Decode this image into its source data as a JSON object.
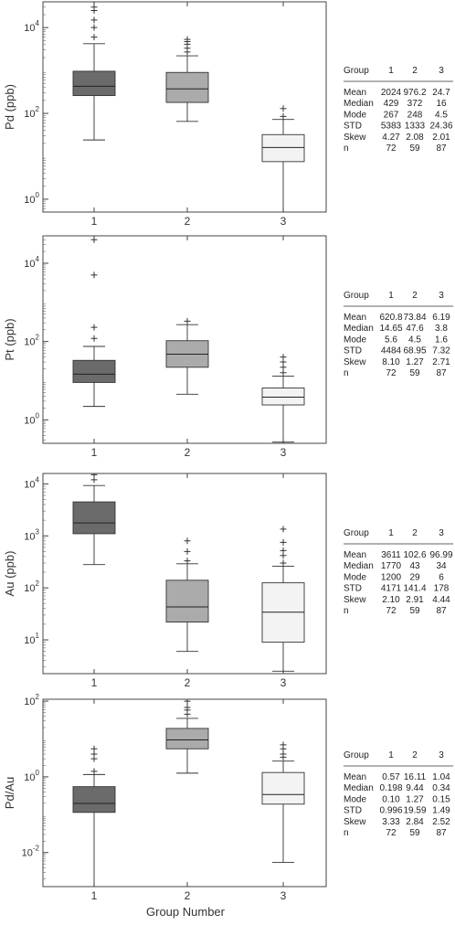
{
  "figure": {
    "xlabel": "Group Number",
    "categories": [
      "1",
      "2",
      "3"
    ],
    "stats_headers": [
      "Group",
      "1",
      "2",
      "3"
    ],
    "colors": {
      "group1": "#6b6b6b",
      "group2": "#ababab",
      "group3": "#f3f3f3",
      "stroke": "#333333"
    }
  },
  "chart_data": [
    {
      "type": "box",
      "ylabel": "Pd (ppb)",
      "yscale": "log",
      "ylim_exp": [
        -0.3,
        4.6
      ],
      "ticks": [
        {
          "exp": 0,
          "label": "10^0"
        },
        {
          "exp": 2,
          "label": "10^2"
        },
        {
          "exp": 4,
          "label": "10^4"
        }
      ],
      "categories": [
        "1",
        "2",
        "3"
      ],
      "boxes": [
        {
          "q1": 260,
          "median": 429,
          "q3": 960,
          "whisker_low": 24,
          "whisker_high": 4200,
          "outliers": [
            6000,
            10000,
            15000,
            25000,
            30000,
            42000
          ]
        },
        {
          "q1": 180,
          "median": 372,
          "q3": 900,
          "whisker_low": 65,
          "whisker_high": 2200,
          "outliers": [
            2700,
            3300,
            4100,
            4700,
            5300
          ]
        },
        {
          "q1": 7.5,
          "median": 16,
          "q3": 32,
          "whisker_low": 0.5,
          "whisker_high": 72,
          "outliers": [
            85,
            130
          ]
        }
      ],
      "stats": [
        {
          "label": "Mean",
          "values": [
            "2024",
            "976.2",
            "24.7"
          ]
        },
        {
          "label": "Median",
          "values": [
            "429",
            "372",
            "16"
          ]
        },
        {
          "label": "Mode",
          "values": [
            "267",
            "248",
            "4.5"
          ]
        },
        {
          "label": "STD",
          "values": [
            "5383",
            "1333",
            "24.36"
          ]
        },
        {
          "label": "Skew",
          "values": [
            "4.27",
            "2.08",
            "2.01"
          ]
        },
        {
          "label": "n",
          "values": [
            "72",
            "59",
            "87"
          ]
        }
      ]
    },
    {
      "type": "box",
      "ylabel": "Pt (ppb)",
      "yscale": "log",
      "ylim_exp": [
        -0.6,
        4.7
      ],
      "ticks": [
        {
          "exp": 0,
          "label": "10^0"
        },
        {
          "exp": 2,
          "label": "10^2"
        },
        {
          "exp": 4,
          "label": "10^4"
        }
      ],
      "categories": [
        "1",
        "2",
        "3"
      ],
      "boxes": [
        {
          "q1": 9,
          "median": 14.65,
          "q3": 33,
          "whisker_low": 2.2,
          "whisker_high": 75,
          "outliers": [
            120,
            230,
            5000,
            40000
          ]
        },
        {
          "q1": 22,
          "median": 47.6,
          "q3": 105,
          "whisker_low": 4.5,
          "whisker_high": 270,
          "outliers": [
            330
          ]
        },
        {
          "q1": 2.4,
          "median": 3.8,
          "q3": 6.5,
          "whisker_low": 0.27,
          "whisker_high": 13,
          "outliers": [
            16,
            22,
            30,
            40
          ]
        }
      ],
      "stats": [
        {
          "label": "Mean",
          "values": [
            "620.8",
            "73.84",
            "6.19"
          ]
        },
        {
          "label": "Median",
          "values": [
            "14.65",
            "47.6",
            "3.8"
          ]
        },
        {
          "label": "Mode",
          "values": [
            "5.6",
            "4.5",
            "1.6"
          ]
        },
        {
          "label": "STD",
          "values": [
            "4484",
            "68.95",
            "7.32"
          ]
        },
        {
          "label": "Skew",
          "values": [
            "8.10",
            "1.27",
            "2.71"
          ]
        },
        {
          "label": "n",
          "values": [
            "72",
            "59",
            "87"
          ]
        }
      ]
    },
    {
      "type": "box",
      "ylabel": "Au (ppb)",
      "yscale": "log",
      "ylim_exp": [
        0.35,
        4.2
      ],
      "ticks": [
        {
          "exp": 1,
          "label": "10^1"
        },
        {
          "exp": 2,
          "label": "10^2"
        },
        {
          "exp": 3,
          "label": "10^3"
        },
        {
          "exp": 4,
          "label": "10^4"
        }
      ],
      "categories": [
        "1",
        "2",
        "3"
      ],
      "boxes": [
        {
          "q1": 1100,
          "median": 1770,
          "q3": 4500,
          "whisker_low": 280,
          "whisker_high": 9300,
          "outliers": [
            12000,
            15000,
            17000,
            18000
          ]
        },
        {
          "q1": 22,
          "median": 43,
          "q3": 140,
          "whisker_low": 6,
          "whisker_high": 290,
          "outliers": [
            330,
            500,
            800
          ]
        },
        {
          "q1": 9,
          "median": 34,
          "q3": 125,
          "whisker_low": 2.5,
          "whisker_high": 260,
          "outliers": [
            300,
            420,
            520,
            750,
            1350
          ]
        }
      ],
      "stats": [
        {
          "label": "Mean",
          "values": [
            "3611",
            "102.6",
            "96.99"
          ]
        },
        {
          "label": "Median",
          "values": [
            "1770",
            "43",
            "34"
          ]
        },
        {
          "label": "Mode",
          "values": [
            "1200",
            "29",
            "6"
          ]
        },
        {
          "label": "STD",
          "values": [
            "4171",
            "141.4",
            "178"
          ]
        },
        {
          "label": "Skew",
          "values": [
            "2.10",
            "2.91",
            "4.44"
          ]
        },
        {
          "label": "n",
          "values": [
            "72",
            "59",
            "87"
          ]
        }
      ]
    },
    {
      "type": "box",
      "ylabel": "Pd/Au",
      "yscale": "log",
      "ylim_exp": [
        -2.9,
        2.05
      ],
      "ticks": [
        {
          "exp": -2,
          "label": "10^-2"
        },
        {
          "exp": 0,
          "label": "10^0"
        },
        {
          "exp": 2,
          "label": "10^2"
        }
      ],
      "categories": [
        "1",
        "2",
        "3"
      ],
      "boxes": [
        {
          "q1": 0.115,
          "median": 0.198,
          "q3": 0.55,
          "whisker_low": 0.001,
          "whisker_high": 1.15,
          "outliers": [
            1.4,
            3.0,
            4.0,
            5.5
          ]
        },
        {
          "q1": 5.5,
          "median": 9.44,
          "q3": 19,
          "whisker_low": 1.25,
          "whisker_high": 35,
          "outliers": [
            45,
            58,
            68,
            100
          ]
        },
        {
          "q1": 0.19,
          "median": 0.34,
          "q3": 1.3,
          "whisker_low": 0.0055,
          "whisker_high": 2.6,
          "outliers": [
            3.3,
            4.0,
            5.5,
            7.0
          ]
        }
      ],
      "stats": [
        {
          "label": "Mean",
          "values": [
            "0.57",
            "16.11",
            "1.04"
          ]
        },
        {
          "label": "Median",
          "values": [
            "0.198",
            "9.44",
            "0.34"
          ]
        },
        {
          "label": "Mode",
          "values": [
            "0.10",
            "1.27",
            "0.15"
          ]
        },
        {
          "label": "STD",
          "values": [
            "0.996",
            "19.59",
            "1.49"
          ]
        },
        {
          "label": "Skew",
          "values": [
            "3.33",
            "2.84",
            "2.52"
          ]
        },
        {
          "label": "n",
          "values": [
            "72",
            "59",
            "87"
          ]
        }
      ]
    }
  ]
}
